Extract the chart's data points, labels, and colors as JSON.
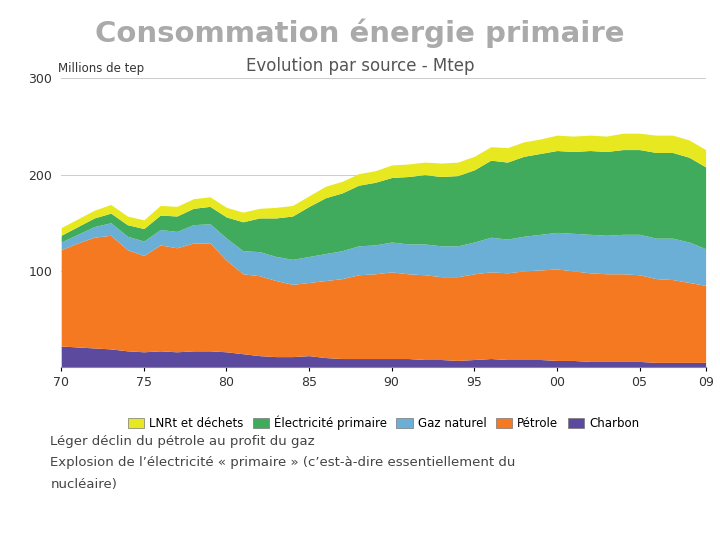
{
  "title": "Consommation énergie primaire",
  "subtitle": "Evolution par source - Mtep",
  "ylabel": "Millions de tep",
  "background_color": "#ffffff",
  "title_color": "#aaaaaa",
  "subtitle_color": "#555555",
  "x_indices": [
    0,
    1,
    2,
    3,
    4,
    5,
    6,
    7,
    8,
    9,
    10,
    11,
    12,
    13,
    14,
    15,
    16,
    17,
    18,
    19,
    20,
    21,
    22,
    23,
    24,
    25,
    26,
    27,
    28,
    29,
    30,
    31,
    32,
    33,
    34,
    35,
    36,
    37,
    38,
    39
  ],
  "xtick_positions": [
    0,
    5,
    10,
    15,
    20,
    25,
    30,
    35,
    39
  ],
  "xtick_labels": [
    "70",
    "75",
    "80",
    "85",
    "90",
    "95",
    "00",
    "05",
    "09"
  ],
  "charbon": [
    22,
    21,
    20,
    19,
    17,
    16,
    17,
    16,
    17,
    17,
    16,
    14,
    12,
    11,
    11,
    12,
    10,
    9,
    9,
    9,
    9,
    9,
    8,
    8,
    7,
    8,
    9,
    8,
    8,
    8,
    7,
    7,
    6,
    6,
    6,
    6,
    5,
    5,
    5,
    5
  ],
  "petrole": [
    100,
    108,
    115,
    118,
    105,
    100,
    110,
    108,
    112,
    112,
    95,
    83,
    83,
    79,
    75,
    76,
    80,
    83,
    87,
    88,
    90,
    88,
    88,
    86,
    87,
    89,
    90,
    90,
    92,
    93,
    95,
    93,
    92,
    91,
    91,
    90,
    87,
    86,
    83,
    80
  ],
  "gaz_naturel": [
    8,
    9,
    11,
    13,
    14,
    15,
    16,
    17,
    19,
    20,
    23,
    24,
    25,
    25,
    26,
    27,
    28,
    29,
    30,
    30,
    31,
    31,
    32,
    32,
    32,
    33,
    36,
    35,
    36,
    37,
    38,
    39,
    40,
    40,
    41,
    42,
    42,
    43,
    42,
    38
  ],
  "electricite_primaire": [
    7,
    8,
    9,
    10,
    12,
    13,
    15,
    16,
    17,
    18,
    22,
    30,
    35,
    40,
    45,
    52,
    58,
    60,
    63,
    65,
    67,
    70,
    72,
    72,
    73,
    75,
    80,
    80,
    83,
    84,
    85,
    85,
    87,
    87,
    88,
    88,
    89,
    89,
    88,
    85
  ],
  "lnrt_dechets": [
    8,
    8,
    8,
    9,
    9,
    9,
    10,
    10,
    10,
    10,
    10,
    10,
    10,
    11,
    11,
    11,
    12,
    12,
    12,
    12,
    13,
    13,
    13,
    14,
    14,
    14,
    14,
    15,
    15,
    15,
    16,
    16,
    16,
    16,
    17,
    17,
    18,
    18,
    18,
    18
  ],
  "colors": {
    "charbon": "#5b4a9e",
    "petrole": "#f47920",
    "gaz_naturel": "#6baed6",
    "electricite_primaire": "#41ab5d",
    "lnrt_dechets": "#e8e820"
  },
  "legend_labels": [
    "LNRt et déchets",
    "Électricité primaire",
    "Gaz naturel",
    "Pétrole",
    "Charbon"
  ],
  "ylim": [
    0,
    300
  ],
  "yticks": [
    0,
    100,
    200,
    300
  ],
  "annotation_line1": "Léger déclin du pétrole au profit du gaz",
  "annotation_line2": "Explosion de l’électricité « primaire » (c’est-à-dire essentiellement du",
  "annotation_line3": "nucléaire)"
}
